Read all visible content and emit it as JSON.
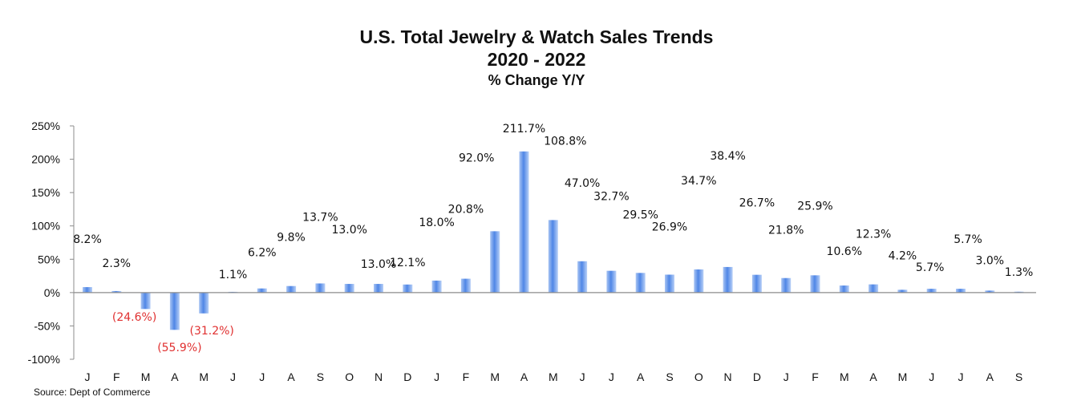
{
  "chart_data": {
    "type": "bar",
    "title": "U.S. Total Jewelry & Watch Sales Trends",
    "subtitle": "2020 - 2022",
    "subtitle2": "% Change Y/Y",
    "categories": [
      "J",
      "F",
      "M",
      "A",
      "M",
      "J",
      "J",
      "A",
      "S",
      "O",
      "N",
      "D",
      "J",
      "F",
      "M",
      "A",
      "M",
      "J",
      "J",
      "A",
      "S",
      "O",
      "N",
      "D",
      "J",
      "F",
      "M",
      "A",
      "M",
      "J",
      "J",
      "A",
      "S"
    ],
    "values": [
      8.2,
      2.3,
      -24.6,
      -55.9,
      -31.2,
      1.1,
      6.2,
      9.8,
      13.7,
      13.0,
      13.0,
      12.1,
      18.0,
      20.8,
      92.0,
      211.7,
      108.8,
      47.0,
      32.7,
      29.5,
      26.9,
      34.7,
      38.4,
      26.7,
      21.8,
      25.9,
      10.6,
      12.3,
      4.2,
      5.7,
      5.7,
      3.0,
      1.3
    ],
    "labels": [
      "8.2%",
      "2.3%",
      "(24.6%)",
      "(55.9%)",
      "(31.2%)",
      "1.1%",
      "6.2%",
      "9.8%",
      "13.7%",
      "13.0%",
      "13.0%",
      "12.1%",
      "18.0%",
      "20.8%",
      "92.0%",
      "211.7%",
      "108.8%",
      "47.0%",
      "32.7%",
      "29.5%",
      "26.9%",
      "34.7%",
      "38.4%",
      "26.7%",
      "21.8%",
      "25.9%",
      "10.6%",
      "12.3%",
      "4.2%",
      "5.7%",
      "5.7%",
      "3.0%",
      "1.3%"
    ],
    "yticks": [
      "250%",
      "200%",
      "150%",
      "100%",
      "50%",
      "0%",
      "-50%",
      "-100%"
    ],
    "ylim": [
      -100,
      250
    ],
    "xlabel": "",
    "ylabel": "",
    "grid": false,
    "legend": "none",
    "colors": {
      "bar": "#5b8ee8",
      "bar_light": "#c9dcfa",
      "negative_label": "#e03030",
      "axis": "#8c8c8c"
    }
  },
  "source": "Source:  Dept of Commerce"
}
